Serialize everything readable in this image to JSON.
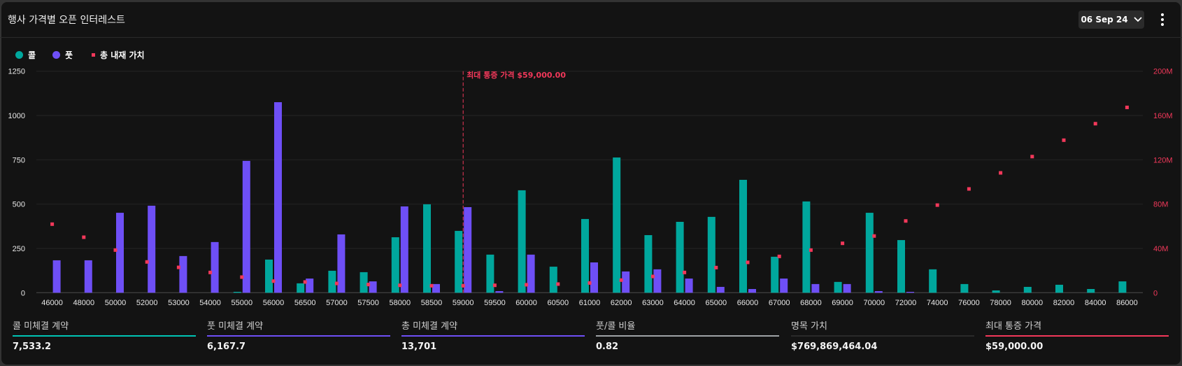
{
  "header": {
    "title": "행사 가격별 오픈 인터레스트",
    "date_label": "06 Sep 24"
  },
  "colors": {
    "call": "#00a79d",
    "put": "#6e4ff6",
    "intrinsic": "#f2385a",
    "ratio": "#9fa3a6",
    "notional": "#2a2a2a"
  },
  "legend": [
    {
      "label": "콜",
      "shape": "circle",
      "color": "#00a79d"
    },
    {
      "label": "풋",
      "shape": "circle",
      "color": "#6e4ff6"
    },
    {
      "label": "총 내재 가치",
      "shape": "square",
      "color": "#f2385a"
    }
  ],
  "chart_data": {
    "type": "bar",
    "categories": [
      "46000",
      "48000",
      "50000",
      "52000",
      "53000",
      "54000",
      "55000",
      "56000",
      "56500",
      "57000",
      "57500",
      "58000",
      "58500",
      "59000",
      "59500",
      "60000",
      "60500",
      "61000",
      "62000",
      "63000",
      "64000",
      "65000",
      "66000",
      "67000",
      "68000",
      "69000",
      "70000",
      "72000",
      "74000",
      "76000",
      "78000",
      "80000",
      "82000",
      "84000",
      "86000"
    ],
    "series": [
      {
        "name": "콜",
        "axis": "left",
        "type": "bar",
        "values": [
          0,
          0,
          0,
          0,
          0,
          0,
          5,
          187,
          53,
          124,
          116,
          313,
          499,
          349,
          215,
          578,
          147,
          416,
          763,
          325,
          400,
          428,
          637,
          203,
          515,
          61,
          451,
          297,
          132,
          49,
          13,
          33,
          45,
          21,
          64
        ]
      },
      {
        "name": "풋",
        "axis": "left",
        "type": "bar",
        "values": [
          183,
          183,
          451,
          491,
          207,
          286,
          744,
          1075,
          80,
          329,
          64,
          487,
          49,
          483,
          9,
          215,
          0,
          171,
          120,
          132,
          80,
          33,
          21,
          80,
          49,
          49,
          9,
          5,
          0,
          0,
          0,
          0,
          0,
          0,
          0
        ]
      },
      {
        "name": "총 내재 가치",
        "axis": "right",
        "type": "scatter",
        "values": [
          61.9,
          50.1,
          38.5,
          27.8,
          22.9,
          18.3,
          14.1,
          10.5,
          9.7,
          8.4,
          7.4,
          6.7,
          6.3,
          6.3,
          6.7,
          7.2,
          7.8,
          8.8,
          11.4,
          14.7,
          18.3,
          22.7,
          27.4,
          32.8,
          38.5,
          44.6,
          51.2,
          64.8,
          79.1,
          93.7,
          108.2,
          122.9,
          137.7,
          152.6,
          167.3
        ]
      }
    ],
    "y_left": {
      "range": [
        0,
        1250
      ],
      "ticks": [
        "0",
        "250",
        "500",
        "750",
        "1000",
        "1250"
      ]
    },
    "y_right": {
      "range": [
        0,
        200
      ],
      "unit": "M",
      "ticks": [
        "0",
        "40M",
        "80M",
        "120M",
        "160M",
        "200M"
      ]
    },
    "annotation": {
      "category": "59000",
      "label": "최대 통증 가격 $59,000.00"
    },
    "grid": true
  },
  "stats": [
    {
      "label": "콜 미체결 계약",
      "value": "7,533.2",
      "color": "#00c4b4"
    },
    {
      "label": "풋 미체결 계약",
      "value": "6,167.7",
      "color": "#6e4ff6"
    },
    {
      "label": "총 미체결 계약",
      "value": "13,701",
      "color": "#6e4ff6"
    },
    {
      "label": "풋/콜 비율",
      "value": "0.82",
      "color": "#9fa3a6"
    },
    {
      "label": "명목 가치",
      "value": "$769,869,464.04",
      "color": "#2a2a2a"
    },
    {
      "label": "최대 통증 가격",
      "value": "$59,000.00",
      "color": "#f2385a"
    }
  ]
}
